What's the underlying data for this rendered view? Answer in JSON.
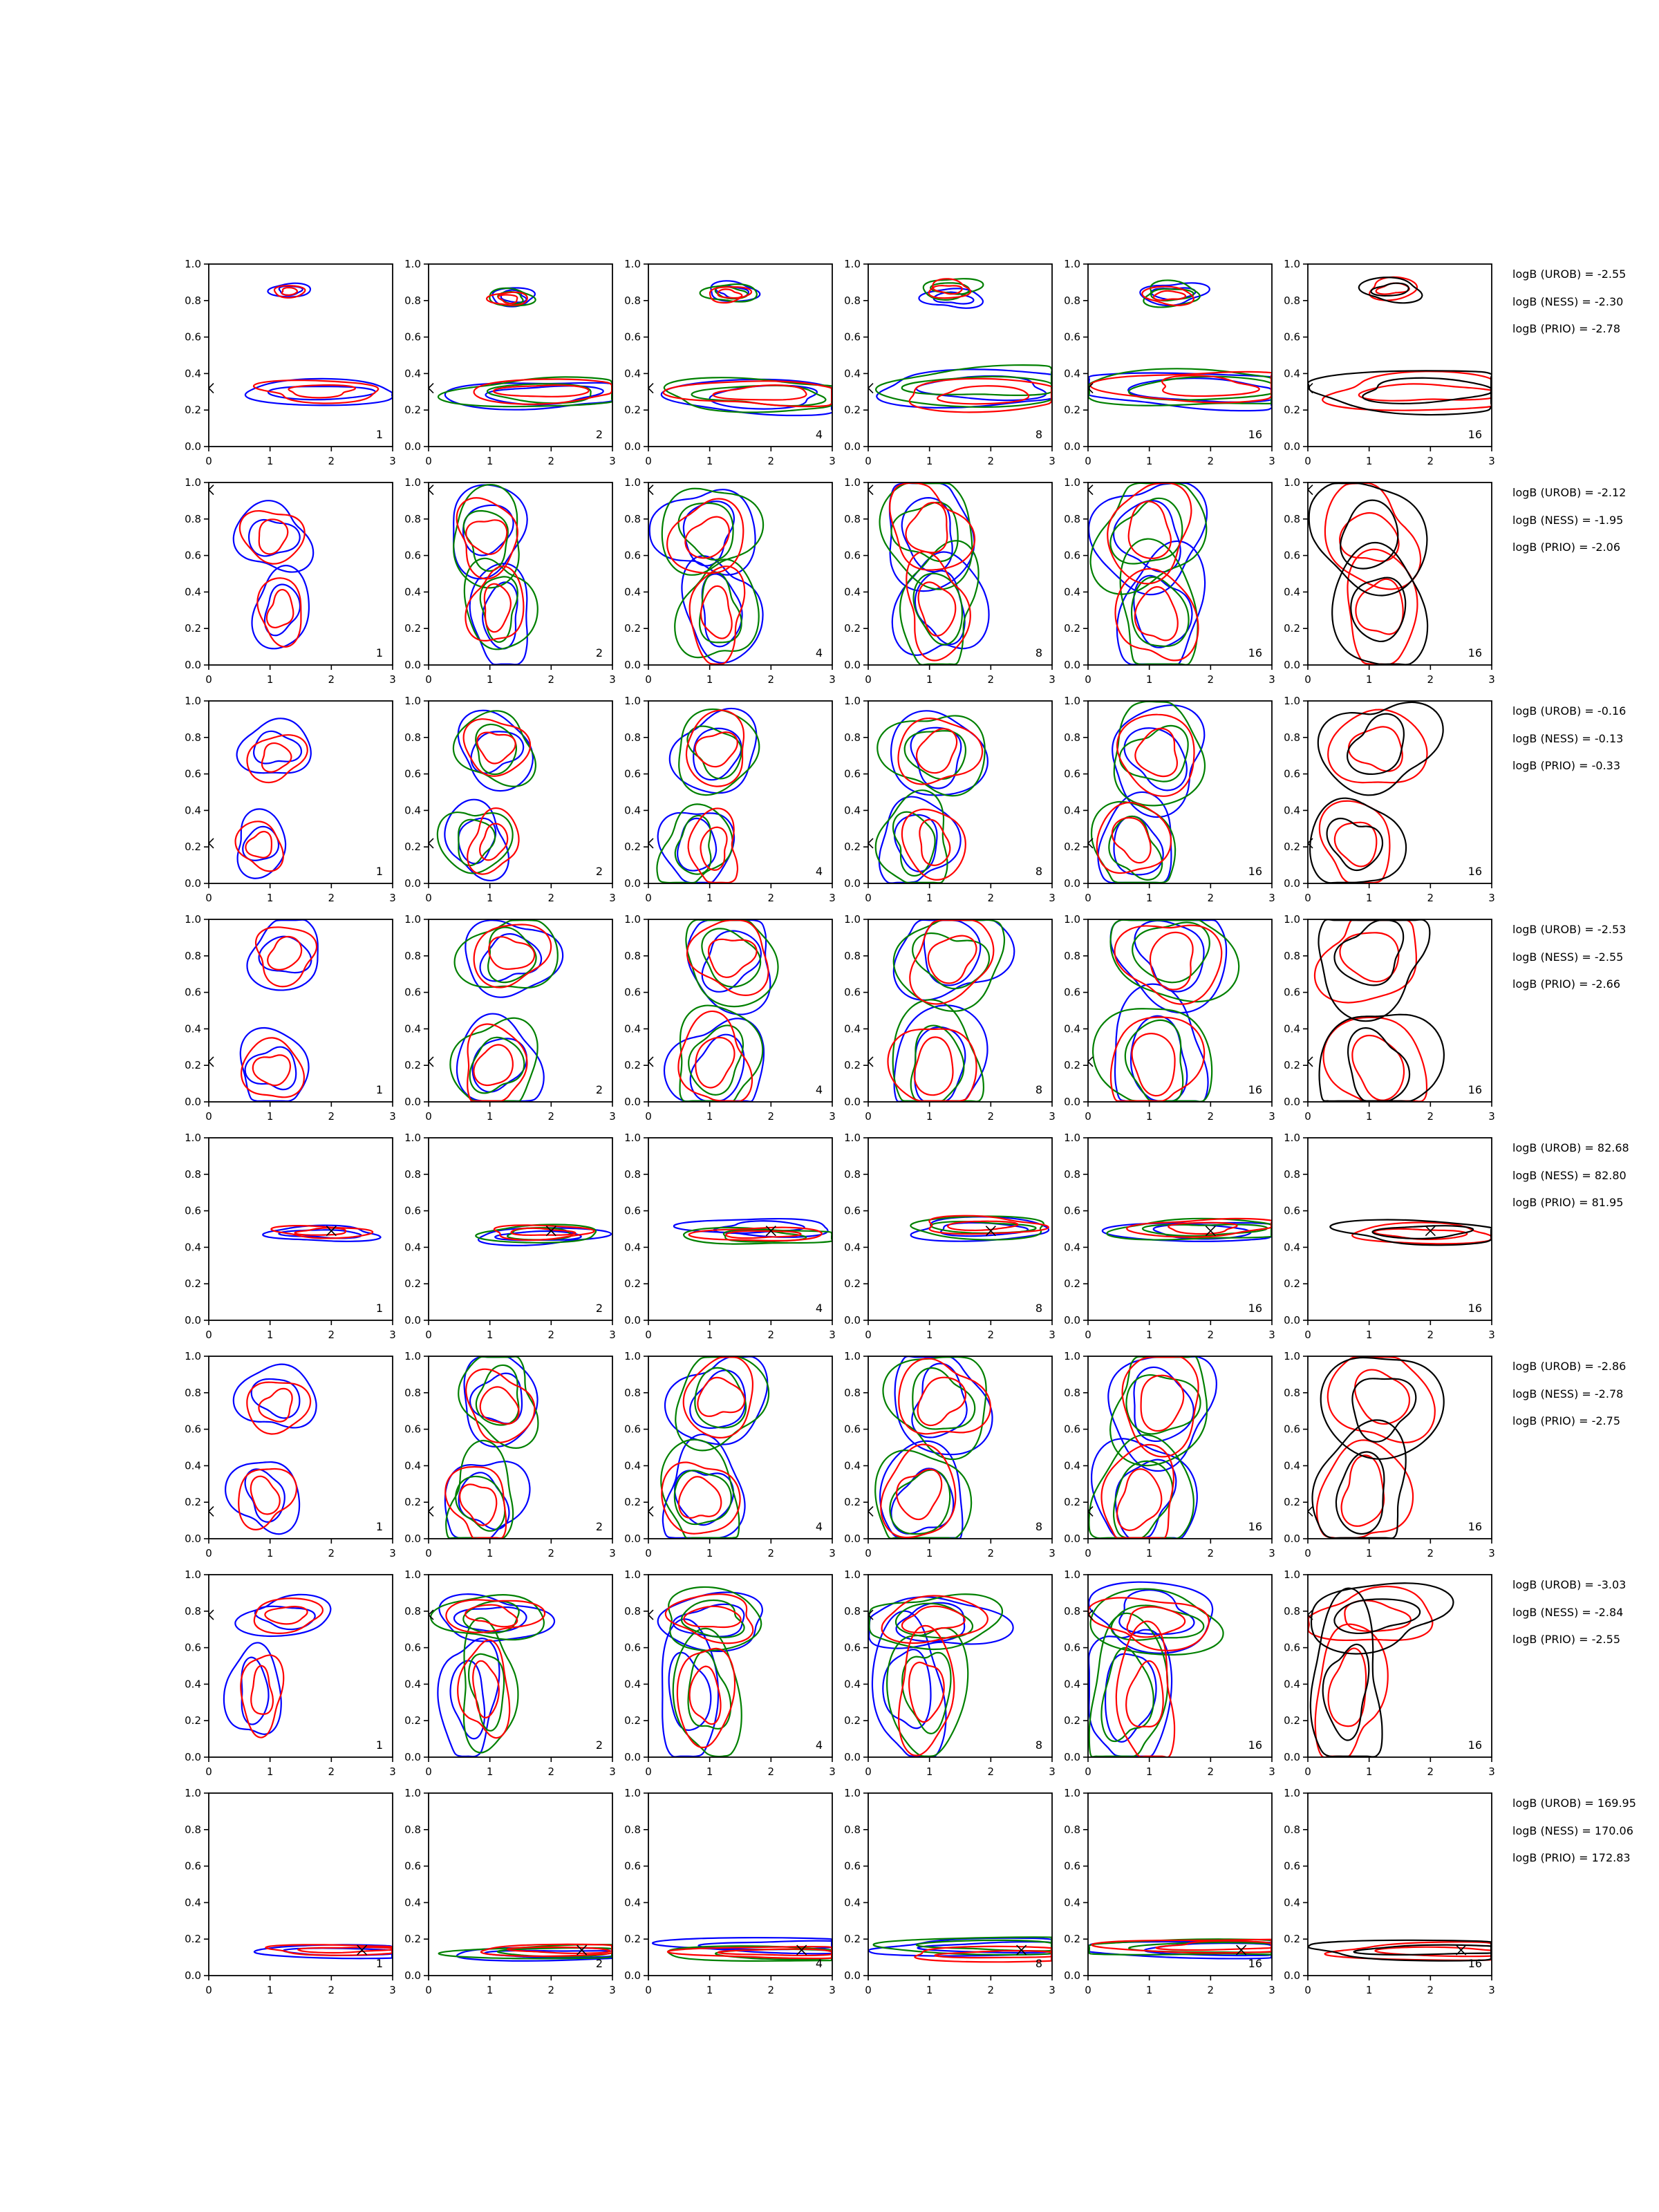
{
  "colors": {
    "urob": "#0000ff",
    "ness": "#ff0000",
    "prio": "#008000",
    "single": "#000000",
    "axes": "#000000"
  },
  "chart_data": {
    "type": "contour",
    "layout": {
      "rows": 8,
      "cols": 6
    },
    "x_ticks": [
      "0",
      "1",
      "2",
      "3"
    ],
    "y_ticks": [
      "0.0",
      "0.2",
      "0.4",
      "0.6",
      "0.8",
      "1.0"
    ],
    "xlim": [
      0,
      3
    ],
    "ylim": [
      0,
      1
    ],
    "column_labels": [
      "1",
      "2",
      "4",
      "8",
      "16",
      "16"
    ],
    "rows": [
      {
        "marker": [
          0,
          0.32
        ],
        "rs": 0.9,
        "logB": {
          "urob": "logB (UROB) = -2.55",
          "ness": "logB (NESS) = -2.30",
          "prio": "logB (PRIO) = -2.78"
        },
        "blobs": [
          [
            1.8,
            0.3,
            1.4,
            0.07
          ],
          [
            1.3,
            0.84,
            0.35,
            0.04
          ]
        ]
      },
      {
        "marker": [
          0,
          0.96
        ],
        "rs": 1.0,
        "logB": {
          "urob": "logB (UROB) = -2.12",
          "ness": "logB (NESS) = -1.95",
          "prio": "logB (PRIO) = -2.06"
        },
        "blobs": [
          [
            1.1,
            0.72,
            0.55,
            0.18
          ],
          [
            1.2,
            0.3,
            0.45,
            0.2
          ]
        ]
      },
      {
        "marker": [
          0,
          0.22
        ],
        "rs": 0.95,
        "logB": {
          "urob": "logB (UROB) = -0.16",
          "ness": "logB (NESS) = -0.13",
          "prio": "logB (PRIO) = -0.33"
        },
        "blobs": [
          [
            1.1,
            0.72,
            0.55,
            0.16
          ],
          [
            0.9,
            0.22,
            0.45,
            0.16
          ]
        ]
      },
      {
        "marker": [
          0,
          0.22
        ],
        "rs": 1.0,
        "logB": {
          "urob": "logB (UROB) = -2.53",
          "ness": "logB (NESS) = -2.55",
          "prio": "logB (PRIO) = -2.66"
        },
        "blobs": [
          [
            1.2,
            0.8,
            0.6,
            0.17
          ],
          [
            1.0,
            0.2,
            0.55,
            0.2
          ]
        ]
      },
      {
        "marker": [
          2.0,
          0.49
        ],
        "rs": 1.1,
        "logB": {
          "urob": "logB (UROB) = 82.68",
          "ness": "logB (NESS) = 82.80",
          "prio": "logB (PRIO) = 81.95"
        },
        "blobs": [
          [
            1.9,
            0.49,
            0.8,
            0.035
          ]
        ]
      },
      {
        "marker": [
          0,
          0.15
        ],
        "rs": 1.0,
        "logB": {
          "urob": "logB (UROB) = -2.86",
          "ness": "logB (NESS) = -2.78",
          "prio": "logB (PRIO) = -2.75"
        },
        "blobs": [
          [
            1.1,
            0.75,
            0.55,
            0.18
          ],
          [
            0.95,
            0.22,
            0.5,
            0.2
          ]
        ]
      },
      {
        "marker": [
          0,
          0.78
        ],
        "rs": 1.0,
        "logB": {
          "urob": "logB (UROB) = -3.03",
          "ness": "logB (NESS) = -2.84",
          "prio": "logB (PRIO) = -2.55"
        },
        "blobs": [
          [
            1.2,
            0.76,
            0.7,
            0.1
          ],
          [
            0.8,
            0.35,
            0.4,
            0.25
          ]
        ]
      },
      {
        "marker": [
          2.5,
          0.14
        ],
        "rs": 1.25,
        "logB": {
          "urob": "logB (UROB) = 169.95",
          "ness": "logB (NESS) = 170.06",
          "prio": "logB (PRIO) = 172.83"
        },
        "blobs": [
          [
            2.2,
            0.14,
            1.2,
            0.025
          ]
        ]
      }
    ],
    "columns": [
      {
        "label": "1",
        "urob": true,
        "ness": true,
        "prio": false,
        "single": false
      },
      {
        "label": "2",
        "urob": true,
        "ness": true,
        "prio": true,
        "single": false
      },
      {
        "label": "4",
        "urob": true,
        "ness": true,
        "prio": true,
        "single": false
      },
      {
        "label": "8",
        "urob": true,
        "ness": true,
        "prio": true,
        "single": false
      },
      {
        "label": "16",
        "urob": true,
        "ness": true,
        "prio": true,
        "single": false
      },
      {
        "label": "16",
        "urob": false,
        "ness": true,
        "prio": false,
        "single": true
      }
    ]
  }
}
